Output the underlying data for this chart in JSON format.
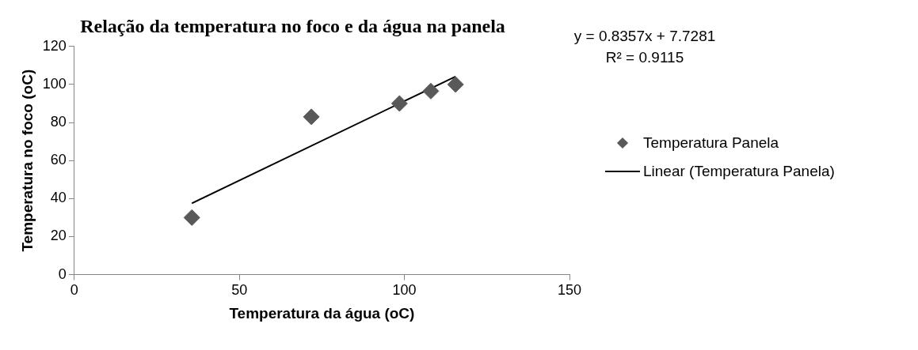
{
  "chart_data": {
    "type": "scatter",
    "title": "Relação da temperatura no foco e da água na panela",
    "xlabel": "Temperatura da água (oC)",
    "ylabel": "Temperatura no foco (oC)",
    "series": [
      {
        "name": "Temperatura Panela",
        "color": "#595959",
        "x": [
          35.6,
          71.8,
          98.5,
          108,
          115.5
        ],
        "values": [
          30,
          83,
          90,
          96.5,
          100
        ]
      },
      {
        "name": "Linear (Temperatura Panela)",
        "type": "line",
        "color": "#000000",
        "marker": "none",
        "x": [
          35.6,
          115.5
        ],
        "values": [
          37.5,
          104.2
        ]
      }
    ],
    "xlim": [
      0,
      150
    ],
    "xticks": [
      0,
      50,
      100,
      150
    ],
    "ylim": [
      0,
      120
    ],
    "yticks": [
      0,
      20,
      40,
      60,
      80,
      100,
      120
    ],
    "grid": false,
    "legend": "right",
    "marker": "diamond",
    "annotations": [
      "y = 0.8357x + 7.7281",
      "R² = 0.9115"
    ]
  }
}
